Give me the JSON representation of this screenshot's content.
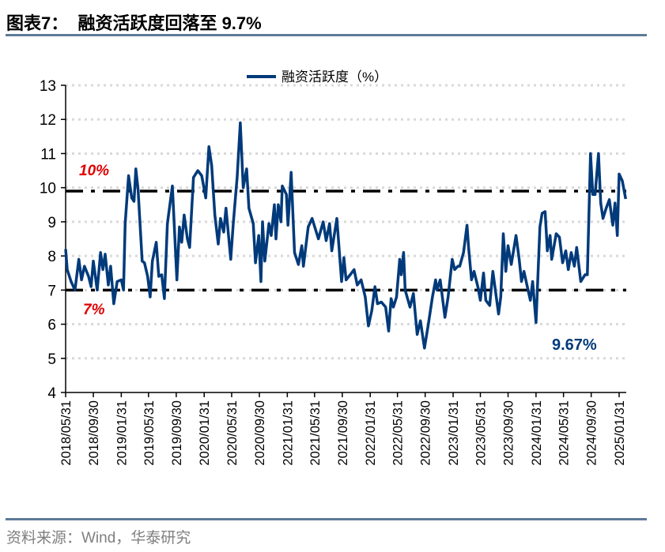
{
  "header": {
    "title": "图表7：  融资活跃度回落至 9.7%"
  },
  "footer": {
    "source": "资料来源：Wind，华泰研究"
  },
  "colors": {
    "series": "#003a7a",
    "reference_lines": "#000000",
    "reference_labels": "#e00000",
    "rule": "#5d7a97",
    "grid": "#d9d9d9"
  },
  "chart_data": {
    "type": "line",
    "title": "",
    "xlabel": "",
    "ylabel": "",
    "ylim": [
      4,
      13
    ],
    "yticks": [
      "4",
      "5",
      "6",
      "7",
      "8",
      "9",
      "10",
      "11",
      "12",
      "13"
    ],
    "xlim": [
      "2018/05/31",
      "2025/01/31"
    ],
    "xticks": [
      "2018/05/31",
      "2018/09/30",
      "2019/01/31",
      "2019/05/31",
      "2019/09/30",
      "2020/01/31",
      "2020/05/31",
      "2020/09/30",
      "2021/01/31",
      "2021/05/31",
      "2021/09/30",
      "2022/01/31",
      "2022/05/31",
      "2022/09/30",
      "2023/01/31",
      "2023/05/31",
      "2023/09/30",
      "2024/01/31",
      "2024/05/31",
      "2024/09/30",
      "2025/01/31"
    ],
    "grid": "horizontal dotted",
    "legend": {
      "position": "top-center",
      "entries": [
        "融资活跃度（%）"
      ]
    },
    "reference_lines": [
      {
        "value": 9.9,
        "label": "10%",
        "style": "dash-dot"
      },
      {
        "value": 7.0,
        "label": "7%",
        "style": "dash-dot"
      }
    ],
    "annotations": [
      {
        "text": "9.67%",
        "value": 9.67
      }
    ],
    "series": [
      {
        "name": "融资活跃度（%）",
        "points": [
          [
            "2018/05/31",
            8.2
          ],
          [
            "2018/06/07",
            7.6
          ],
          [
            "2018/06/24",
            7.25
          ],
          [
            "2018/07/11",
            7.0
          ],
          [
            "2018/07/28",
            7.9
          ],
          [
            "2018/08/09",
            7.3
          ],
          [
            "2018/08/22",
            7.7
          ],
          [
            "2018/09/09",
            7.4
          ],
          [
            "2018/09/20",
            7.1
          ],
          [
            "2018/09/30",
            7.85
          ],
          [
            "2018/10/17",
            7.0
          ],
          [
            "2018/11/01",
            8.1
          ],
          [
            "2018/11/11",
            7.6
          ],
          [
            "2018/11/21",
            8.05
          ],
          [
            "2018/12/05",
            7.15
          ],
          [
            "2018/12/15",
            7.7
          ],
          [
            "2018/12/29",
            6.6
          ],
          [
            "2019/01/13",
            7.25
          ],
          [
            "2019/01/31",
            7.3
          ],
          [
            "2019/02/10",
            7.0
          ],
          [
            "2019/02/17",
            8.95
          ],
          [
            "2019/03/04",
            10.35
          ],
          [
            "2019/03/18",
            9.7
          ],
          [
            "2019/03/28",
            9.6
          ],
          [
            "2019/04/05",
            10.55
          ],
          [
            "2019/04/15",
            9.95
          ],
          [
            "2019/05/03",
            7.85
          ],
          [
            "2019/05/13",
            7.8
          ],
          [
            "2019/05/27",
            7.4
          ],
          [
            "2019/06/07",
            6.8
          ],
          [
            "2019/06/17",
            7.85
          ],
          [
            "2019/07/04",
            8.4
          ],
          [
            "2019/07/15",
            7.4
          ],
          [
            "2019/07/28",
            7.45
          ],
          [
            "2019/08/09",
            6.75
          ],
          [
            "2019/08/22",
            8.95
          ],
          [
            "2019/09/13",
            10.05
          ],
          [
            "2019/10/03",
            7.3
          ],
          [
            "2019/10/14",
            8.85
          ],
          [
            "2019/10/24",
            8.4
          ],
          [
            "2019/11/04",
            9.2
          ],
          [
            "2019/11/18",
            8.5
          ],
          [
            "2019/11/28",
            8.25
          ],
          [
            "2019/12/15",
            10.3
          ],
          [
            "2020/01/03",
            10.5
          ],
          [
            "2020/01/20",
            10.35
          ],
          [
            "2020/02/07",
            9.7
          ],
          [
            "2020/02/21",
            11.2
          ],
          [
            "2020/03/04",
            10.65
          ],
          [
            "2020/03/18",
            9.2
          ],
          [
            "2020/04/02",
            8.35
          ],
          [
            "2020/04/12",
            9.1
          ],
          [
            "2020/04/26",
            8.7
          ],
          [
            "2020/05/06",
            9.4
          ],
          [
            "2020/05/27",
            7.9
          ],
          [
            "2020/06/07",
            8.95
          ],
          [
            "2020/06/24",
            10.3
          ],
          [
            "2020/07/08",
            11.9
          ],
          [
            "2020/07/21",
            10.0
          ],
          [
            "2020/08/05",
            10.55
          ],
          [
            "2020/08/15",
            9.4
          ],
          [
            "2020/09/03",
            8.95
          ],
          [
            "2020/09/13",
            7.8
          ],
          [
            "2020/09/27",
            8.6
          ],
          [
            "2020/10/07",
            7.25
          ],
          [
            "2020/10/14",
            9.0
          ],
          [
            "2020/10/24",
            7.85
          ],
          [
            "2020/11/11",
            8.95
          ],
          [
            "2020/11/21",
            8.6
          ],
          [
            "2020/12/05",
            9.5
          ],
          [
            "2020/12/12",
            8.5
          ],
          [
            "2020/12/22",
            9.5
          ],
          [
            "2021/01/03",
            9.0
          ],
          [
            "2021/01/09",
            10.05
          ],
          [
            "2021/01/27",
            9.8
          ],
          [
            "2021/02/03",
            8.9
          ],
          [
            "2021/02/17",
            10.45
          ],
          [
            "2021/03/04",
            8.1
          ],
          [
            "2021/03/21",
            7.75
          ],
          [
            "2021/04/05",
            8.3
          ],
          [
            "2021/04/12",
            7.7
          ],
          [
            "2021/05/03",
            8.85
          ],
          [
            "2021/05/20",
            9.1
          ],
          [
            "2021/06/17",
            8.5
          ],
          [
            "2021/07/08",
            9.0
          ],
          [
            "2021/07/21",
            8.45
          ],
          [
            "2021/08/05",
            8.95
          ],
          [
            "2021/08/15",
            8.15
          ],
          [
            "2021/09/06",
            9.1
          ],
          [
            "2021/09/27",
            7.25
          ],
          [
            "2021/10/07",
            7.95
          ],
          [
            "2021/10/17",
            7.3
          ],
          [
            "2021/11/04",
            7.45
          ],
          [
            "2021/11/21",
            7.6
          ],
          [
            "2021/12/05",
            7.15
          ],
          [
            "2021/12/22",
            7.3
          ],
          [
            "2022/01/09",
            6.8
          ],
          [
            "2022/01/23",
            5.95
          ],
          [
            "2022/02/07",
            6.4
          ],
          [
            "2022/02/21",
            7.1
          ],
          [
            "2022/03/04",
            6.6
          ],
          [
            "2022/03/21",
            6.65
          ],
          [
            "2022/04/09",
            6.5
          ],
          [
            "2022/04/22",
            5.8
          ],
          [
            "2022/05/03",
            6.75
          ],
          [
            "2022/05/13",
            6.5
          ],
          [
            "2022/05/27",
            6.8
          ],
          [
            "2022/06/10",
            7.9
          ],
          [
            "2022/06/17",
            7.45
          ],
          [
            "2022/06/27",
            8.1
          ],
          [
            "2022/07/04",
            7.0
          ],
          [
            "2022/07/25",
            6.5
          ],
          [
            "2022/08/09",
            6.9
          ],
          [
            "2022/08/26",
            5.7
          ],
          [
            "2022/09/09",
            6.1
          ],
          [
            "2022/09/27",
            5.3
          ],
          [
            "2022/10/14",
            6.0
          ],
          [
            "2022/11/01",
            6.8
          ],
          [
            "2022/11/15",
            7.3
          ],
          [
            "2022/11/21",
            7.0
          ],
          [
            "2022/12/05",
            7.3
          ],
          [
            "2022/12/26",
            6.2
          ],
          [
            "2023/01/09",
            6.8
          ],
          [
            "2023/01/27",
            7.9
          ],
          [
            "2023/02/07",
            7.6
          ],
          [
            "2023/02/21",
            7.7
          ],
          [
            "2023/03/01",
            7.7
          ],
          [
            "2023/03/18",
            8.1
          ],
          [
            "2023/04/02",
            8.9
          ],
          [
            "2023/04/09",
            8.25
          ],
          [
            "2023/04/22",
            7.3
          ],
          [
            "2023/05/03",
            7.55
          ],
          [
            "2023/05/20",
            7.1
          ],
          [
            "2023/05/31",
            6.7
          ],
          [
            "2023/06/14",
            7.5
          ],
          [
            "2023/06/24",
            6.7
          ],
          [
            "2023/07/11",
            6.55
          ],
          [
            "2023/07/25",
            7.55
          ],
          [
            "2023/08/19",
            6.3
          ],
          [
            "2023/08/29",
            6.8
          ],
          [
            "2023/09/09",
            8.65
          ],
          [
            "2023/09/20",
            7.55
          ],
          [
            "2023/09/30",
            8.3
          ],
          [
            "2023/10/14",
            7.75
          ],
          [
            "2023/11/04",
            8.6
          ],
          [
            "2023/11/18",
            7.9
          ],
          [
            "2023/11/28",
            7.25
          ],
          [
            "2023/12/09",
            7.55
          ],
          [
            "2023/12/22",
            7.15
          ],
          [
            "2024/01/06",
            6.7
          ],
          [
            "2024/01/16",
            7.25
          ],
          [
            "2024/01/31",
            6.05
          ],
          [
            "2024/02/17",
            8.85
          ],
          [
            "2024/02/27",
            9.25
          ],
          [
            "2024/03/11",
            9.3
          ],
          [
            "2024/03/21",
            8.15
          ],
          [
            "2024/04/02",
            8.6
          ],
          [
            "2024/04/09",
            7.9
          ],
          [
            "2024/04/29",
            8.65
          ],
          [
            "2024/05/13",
            8.55
          ],
          [
            "2024/05/27",
            7.8
          ],
          [
            "2024/06/10",
            8.15
          ],
          [
            "2024/06/21",
            7.6
          ],
          [
            "2024/07/04",
            8.1
          ],
          [
            "2024/07/18",
            7.7
          ],
          [
            "2024/07/28",
            8.25
          ],
          [
            "2024/08/15",
            7.25
          ],
          [
            "2024/09/03",
            7.45
          ],
          [
            "2024/09/13",
            7.45
          ],
          [
            "2024/09/27",
            11.0
          ],
          [
            "2024/10/07",
            9.8
          ],
          [
            "2024/10/17",
            9.8
          ],
          [
            "2024/11/01",
            11.0
          ],
          [
            "2024/11/11",
            9.55
          ],
          [
            "2024/11/21",
            9.1
          ],
          [
            "2024/12/05",
            9.4
          ],
          [
            "2024/12/19",
            9.65
          ],
          [
            "2025/01/03",
            8.9
          ],
          [
            "2025/01/13",
            9.55
          ],
          [
            "2025/01/23",
            8.6
          ],
          [
            "2025/01/31",
            10.4
          ],
          [
            "2025/02/14",
            10.2
          ],
          [
            "2025/03/01",
            9.67
          ]
        ]
      }
    ]
  }
}
